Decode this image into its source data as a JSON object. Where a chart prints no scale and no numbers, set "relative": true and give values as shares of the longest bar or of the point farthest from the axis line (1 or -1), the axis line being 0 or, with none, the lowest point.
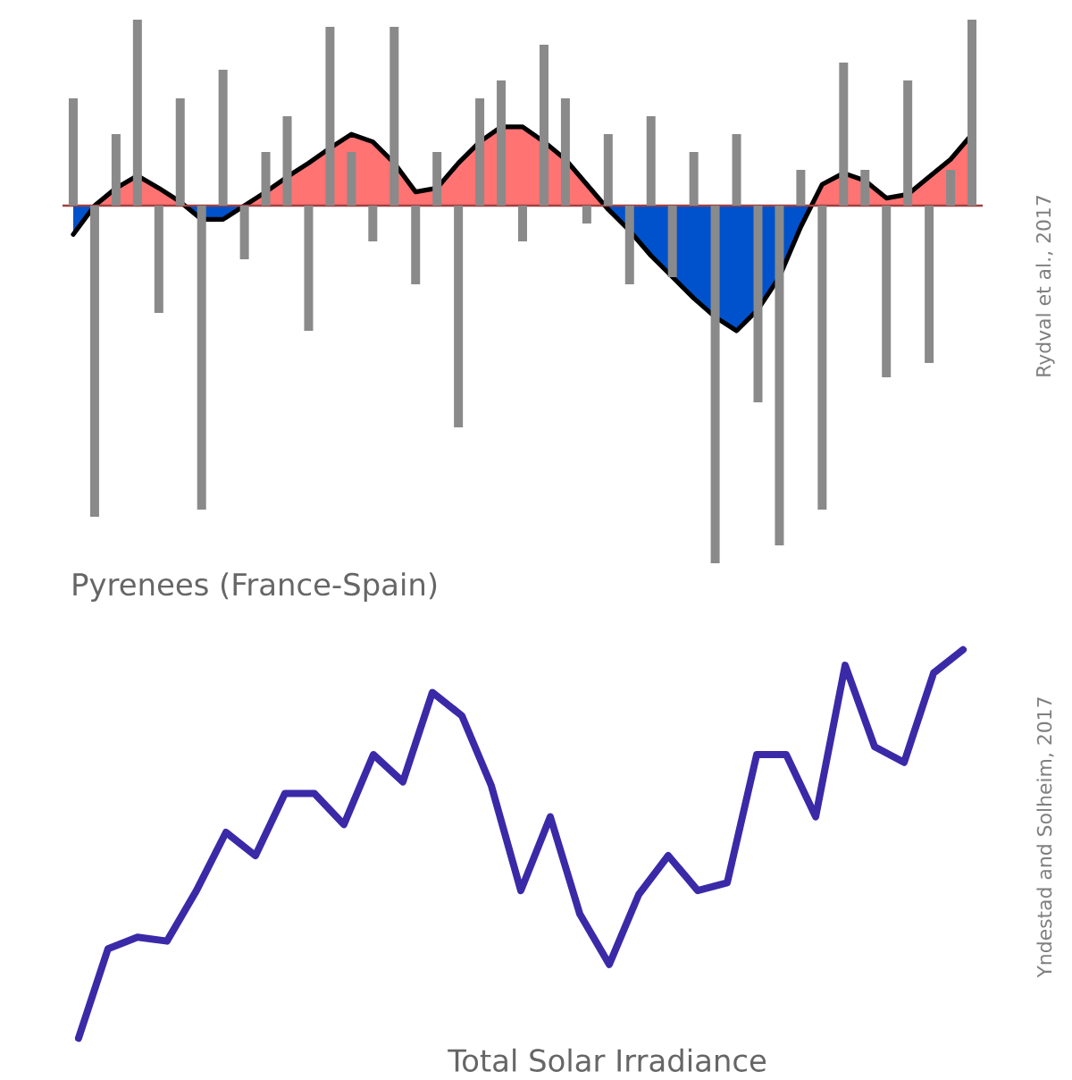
{
  "chart_data": [
    {
      "type": "area",
      "relative": true,
      "categories": [
        null,
        null,
        null,
        null,
        null,
        null,
        null,
        null,
        null,
        null,
        null,
        null,
        null,
        null,
        null,
        null,
        null,
        null,
        null,
        null,
        null,
        null,
        null,
        null,
        null,
        null,
        null,
        null,
        null,
        null,
        null,
        null,
        null,
        null,
        null,
        null,
        null,
        null,
        null,
        null,
        null,
        null,
        null
      ],
      "series": [
        {
          "color": "#000000",
          "values": [
            -0.23,
            0,
            0.14,
            0.24,
            0.14,
            0.03,
            -0.11,
            -0.11,
            0,
            0.11,
            0.23,
            0.34,
            0.46,
            0.57,
            0.51,
            0.34,
            0.11,
            0.14,
            0.34,
            0.51,
            0.63,
            0.63,
            0.51,
            0.37,
            0.17,
            -0.03,
            -0.2,
            -0.4,
            -0.57,
            -0.74,
            -0.89,
            -1,
            -0.83,
            -0.57,
            -0.17,
            0.17,
            0.26,
            0.2,
            0.06,
            0.09,
            0.23,
            0.37,
            0.57
          ]
        }
      ],
      "ref_lines": [
        {
          "axis": "y",
          "value": 0,
          "color": "#a04040"
        }
      ]
    },
    {
      "type": "bar",
      "relative": true,
      "categories": [
        null,
        null,
        null,
        null,
        null,
        null,
        null,
        null,
        null,
        null,
        null,
        null,
        null,
        null,
        null,
        null,
        null,
        null,
        null,
        null,
        null,
        null,
        null,
        null,
        null,
        null,
        null,
        null,
        null,
        null,
        null,
        null,
        null,
        null,
        null,
        null,
        null,
        null,
        null,
        null,
        null,
        null,
        null
      ],
      "series": [
        {
          "color": "#8a8a8a",
          "values": [
            0.3,
            -0.87,
            0.2,
            0.52,
            -0.3,
            0.3,
            -0.85,
            0.38,
            -0.15,
            0.15,
            0.25,
            -0.35,
            0.5,
            0.15,
            -0.1,
            0.5,
            -0.22,
            0.15,
            -0.62,
            0.3,
            0.35,
            -0.1,
            0.45,
            0.3,
            -0.05,
            0.2,
            -0.22,
            0.25,
            -0.2,
            0.15,
            -1,
            0.2,
            -0.55,
            -0.95,
            0.1,
            -0.85,
            0.4,
            0.1,
            -0.48,
            0.35,
            -0.44,
            0.1,
            0.52
          ]
        }
      ],
      "annotations": [
        "Rydval et al., 2017",
        "Pyrenees (France-Spain)"
      ]
    },
    {
      "type": "line",
      "relative": true,
      "categories": [
        null,
        null,
        null,
        null,
        null,
        null,
        null,
        null,
        null,
        null,
        null,
        null,
        null,
        null,
        null,
        null,
        null,
        null,
        null,
        null,
        null,
        null,
        null,
        null,
        null,
        null,
        null,
        null,
        null,
        null,
        null
      ],
      "series": [
        {
          "color": "#3a2aa8",
          "values": [
            0.0,
            0.23,
            0.26,
            0.25,
            0.38,
            0.53,
            0.47,
            0.63,
            0.63,
            0.55,
            0.73,
            0.66,
            0.89,
            0.83,
            0.65,
            0.38,
            0.57,
            0.32,
            0.19,
            0.37,
            0.47,
            0.38,
            0.4,
            0.73,
            0.73,
            0.57,
            0.96,
            0.75,
            0.71,
            0.94,
            1.0
          ]
        }
      ],
      "annotations": [
        "Total Solar Irradiance",
        "Yndestad and Solheim, 2017"
      ]
    }
  ]
}
